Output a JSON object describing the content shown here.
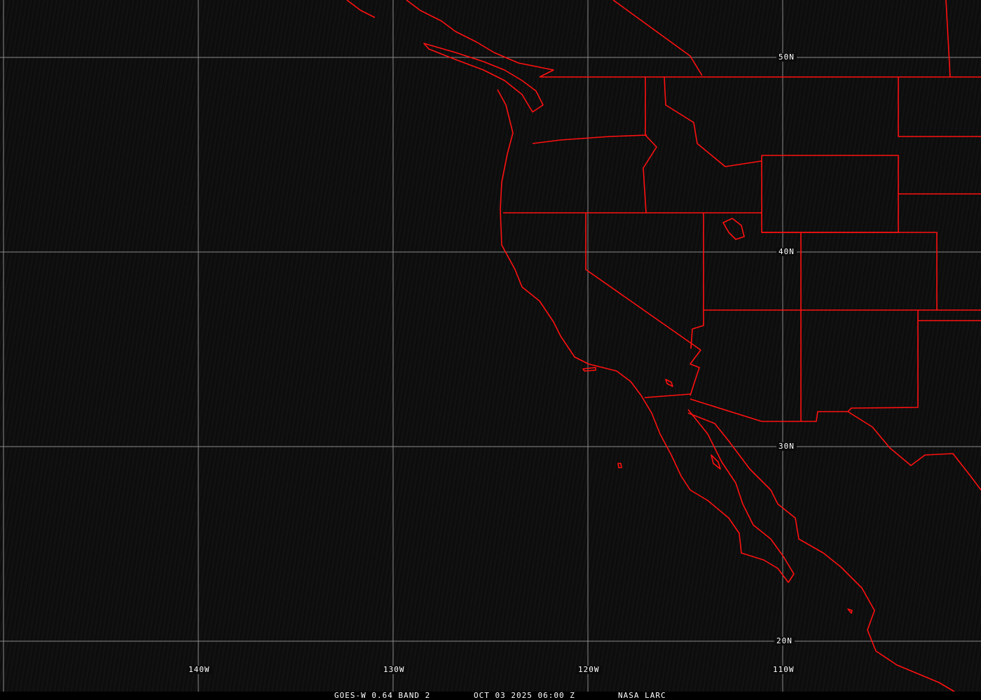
{
  "caption": {
    "product": "GOES-W 0.64 BAND 2",
    "datetime": "OCT 03 2025 06:00 Z",
    "source": "NASA LARC"
  },
  "grid": {
    "latitudes": [
      "50N",
      "40N",
      "30N",
      "20N"
    ],
    "longitudes": [
      "140W",
      "130W",
      "120W",
      "110W"
    ]
  },
  "colors": {
    "boundaries": "#ff0000",
    "grid": "#9a9a9a",
    "background": "#0d0d0d"
  }
}
